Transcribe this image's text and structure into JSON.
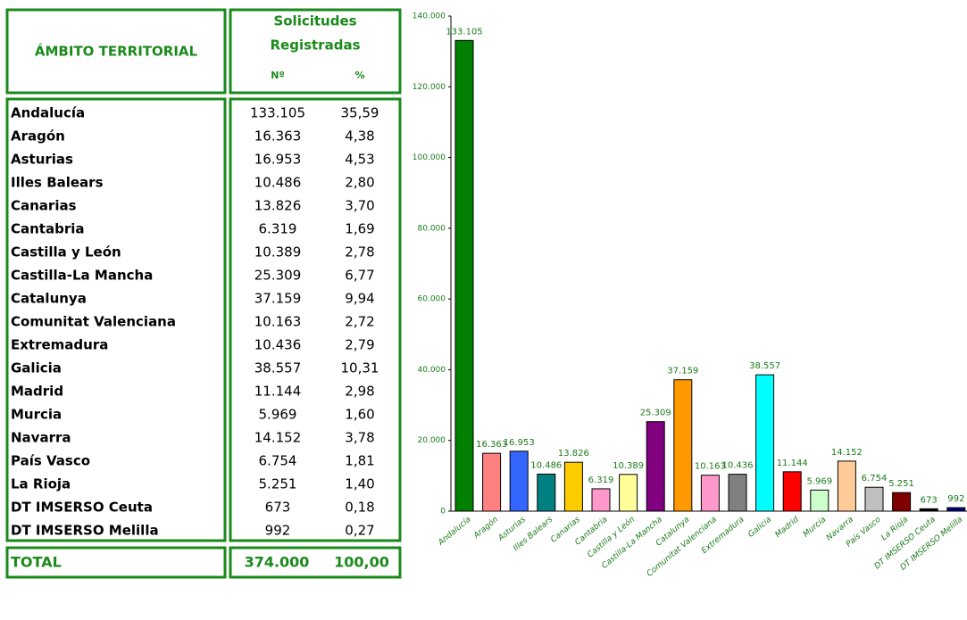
{
  "table": {
    "header": {
      "territory": "ÁMBITO TERRITORIAL",
      "group": [
        "Solicitudes",
        "Registradas"
      ],
      "number": "Nº",
      "percent": "%"
    },
    "rows": [
      [
        "Andalucía",
        "133.105",
        "35,59"
      ],
      [
        "Aragón",
        "16.363",
        "4,38"
      ],
      [
        "Asturias",
        "16.953",
        "4,53"
      ],
      [
        "Illes Balears",
        "10.486",
        "2,80"
      ],
      [
        "Canarias",
        "13.826",
        "3,70"
      ],
      [
        "Cantabria",
        "6.319",
        "1,69"
      ],
      [
        "Castilla y León",
        "10.389",
        "2,78"
      ],
      [
        "Castilla-La Mancha",
        "25.309",
        "6,77"
      ],
      [
        "Catalunya",
        "37.159",
        "9,94"
      ],
      [
        "Comunitat Valenciana",
        "10.163",
        "2,72"
      ],
      [
        "Extremadura",
        "10.436",
        "2,79"
      ],
      [
        "Galicia",
        "38.557",
        "10,31"
      ],
      [
        "Madrid",
        "11.144",
        "2,98"
      ],
      [
        "Murcia",
        "5.969",
        "1,60"
      ],
      [
        "Navarra",
        "14.152",
        "3,78"
      ],
      [
        "País Vasco",
        "6.754",
        "1,81"
      ],
      [
        "La Rioja",
        "5.251",
        "1,40"
      ],
      [
        "DT IMSERSO Ceuta",
        "673",
        "0,18"
      ],
      [
        "DT IMSERSO Melilla",
        "992",
        "0,27"
      ]
    ],
    "total": [
      "TOTAL",
      "374.000",
      "100,00"
    ]
  },
  "chart_data": {
    "type": "bar",
    "categories": [
      "Andalucía",
      "Aragón",
      "Asturias",
      "Illes Balears",
      "Canarias",
      "Cantabria",
      "Castilla y León",
      "Castilla-La Mancha",
      "Catalunya",
      "Comunitat Valenciana",
      "Extremadura",
      "Galicia",
      "Madrid",
      "Murcia",
      "Navarra",
      "País Vasco",
      "La Rioja",
      "DT IMSERSO Ceuta",
      "DT IMSERSO Melilla"
    ],
    "values": [
      133105,
      16363,
      16953,
      10486,
      13826,
      6319,
      10389,
      25309,
      37159,
      10163,
      10436,
      38557,
      11144,
      5969,
      14152,
      6754,
      5251,
      673,
      992
    ],
    "value_labels": [
      "133.105",
      "16.363",
      "16.953",
      "10.486",
      "13.826",
      "6.319",
      "10.389",
      "25.309",
      "37.159",
      "10.163",
      "10.436",
      "38.557",
      "11.144",
      "5.969",
      "14.152",
      "6.754",
      "5.251",
      "673",
      "992"
    ],
    "colors": [
      "#008000",
      "#ff8080",
      "#3366ff",
      "#008080",
      "#ffcc00",
      "#ff99cc",
      "#ffff99",
      "#800080",
      "#ff9900",
      "#ff99cc",
      "#808080",
      "#00ffff",
      "#ff0000",
      "#ccffcc",
      "#ffcc99",
      "#c0c0c0",
      "#800000",
      "#000000",
      "#000080"
    ],
    "ylim": [
      0,
      140000
    ],
    "yticks": [
      {
        "value": 0,
        "label": "0"
      },
      {
        "value": 20000,
        "label": "20.000"
      },
      {
        "value": 40000,
        "label": "40.000"
      },
      {
        "value": 60000,
        "label": "60.000"
      },
      {
        "value": 80000,
        "label": "80.000"
      },
      {
        "value": 100000,
        "label": "100.000"
      },
      {
        "value": 120000,
        "label": "120.000"
      },
      {
        "value": 140000,
        "label": "140.000"
      }
    ]
  }
}
